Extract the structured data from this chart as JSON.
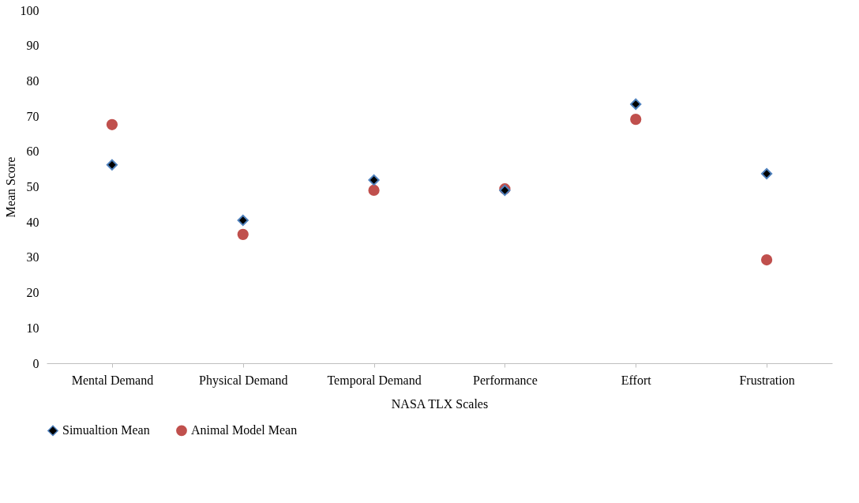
{
  "chart_data": {
    "type": "scatter",
    "xlabel": "NASA TLX Scales",
    "ylabel": "Mean Score",
    "categories": [
      "Mental Demand",
      "Physical Demand",
      "Temporal Demand",
      "Performance",
      "Effort",
      "Frustration"
    ],
    "series": [
      {
        "name": "Simualtion Mean",
        "color": "#000000",
        "marker": "diamond",
        "values": [
          56.2,
          40.5,
          51.9,
          49.0,
          73.4,
          53.7
        ]
      },
      {
        "name": "Animal Model Mean",
        "color": "#c0504d",
        "marker": "circle",
        "values": [
          67.6,
          36.5,
          49.0,
          49.4,
          69.1,
          29.3
        ]
      }
    ],
    "ylim": [
      0,
      100
    ],
    "yticks": [
      0,
      10,
      20,
      30,
      40,
      50,
      60,
      70,
      80,
      90,
      100
    ],
    "grid": false,
    "legend": "bottom"
  }
}
